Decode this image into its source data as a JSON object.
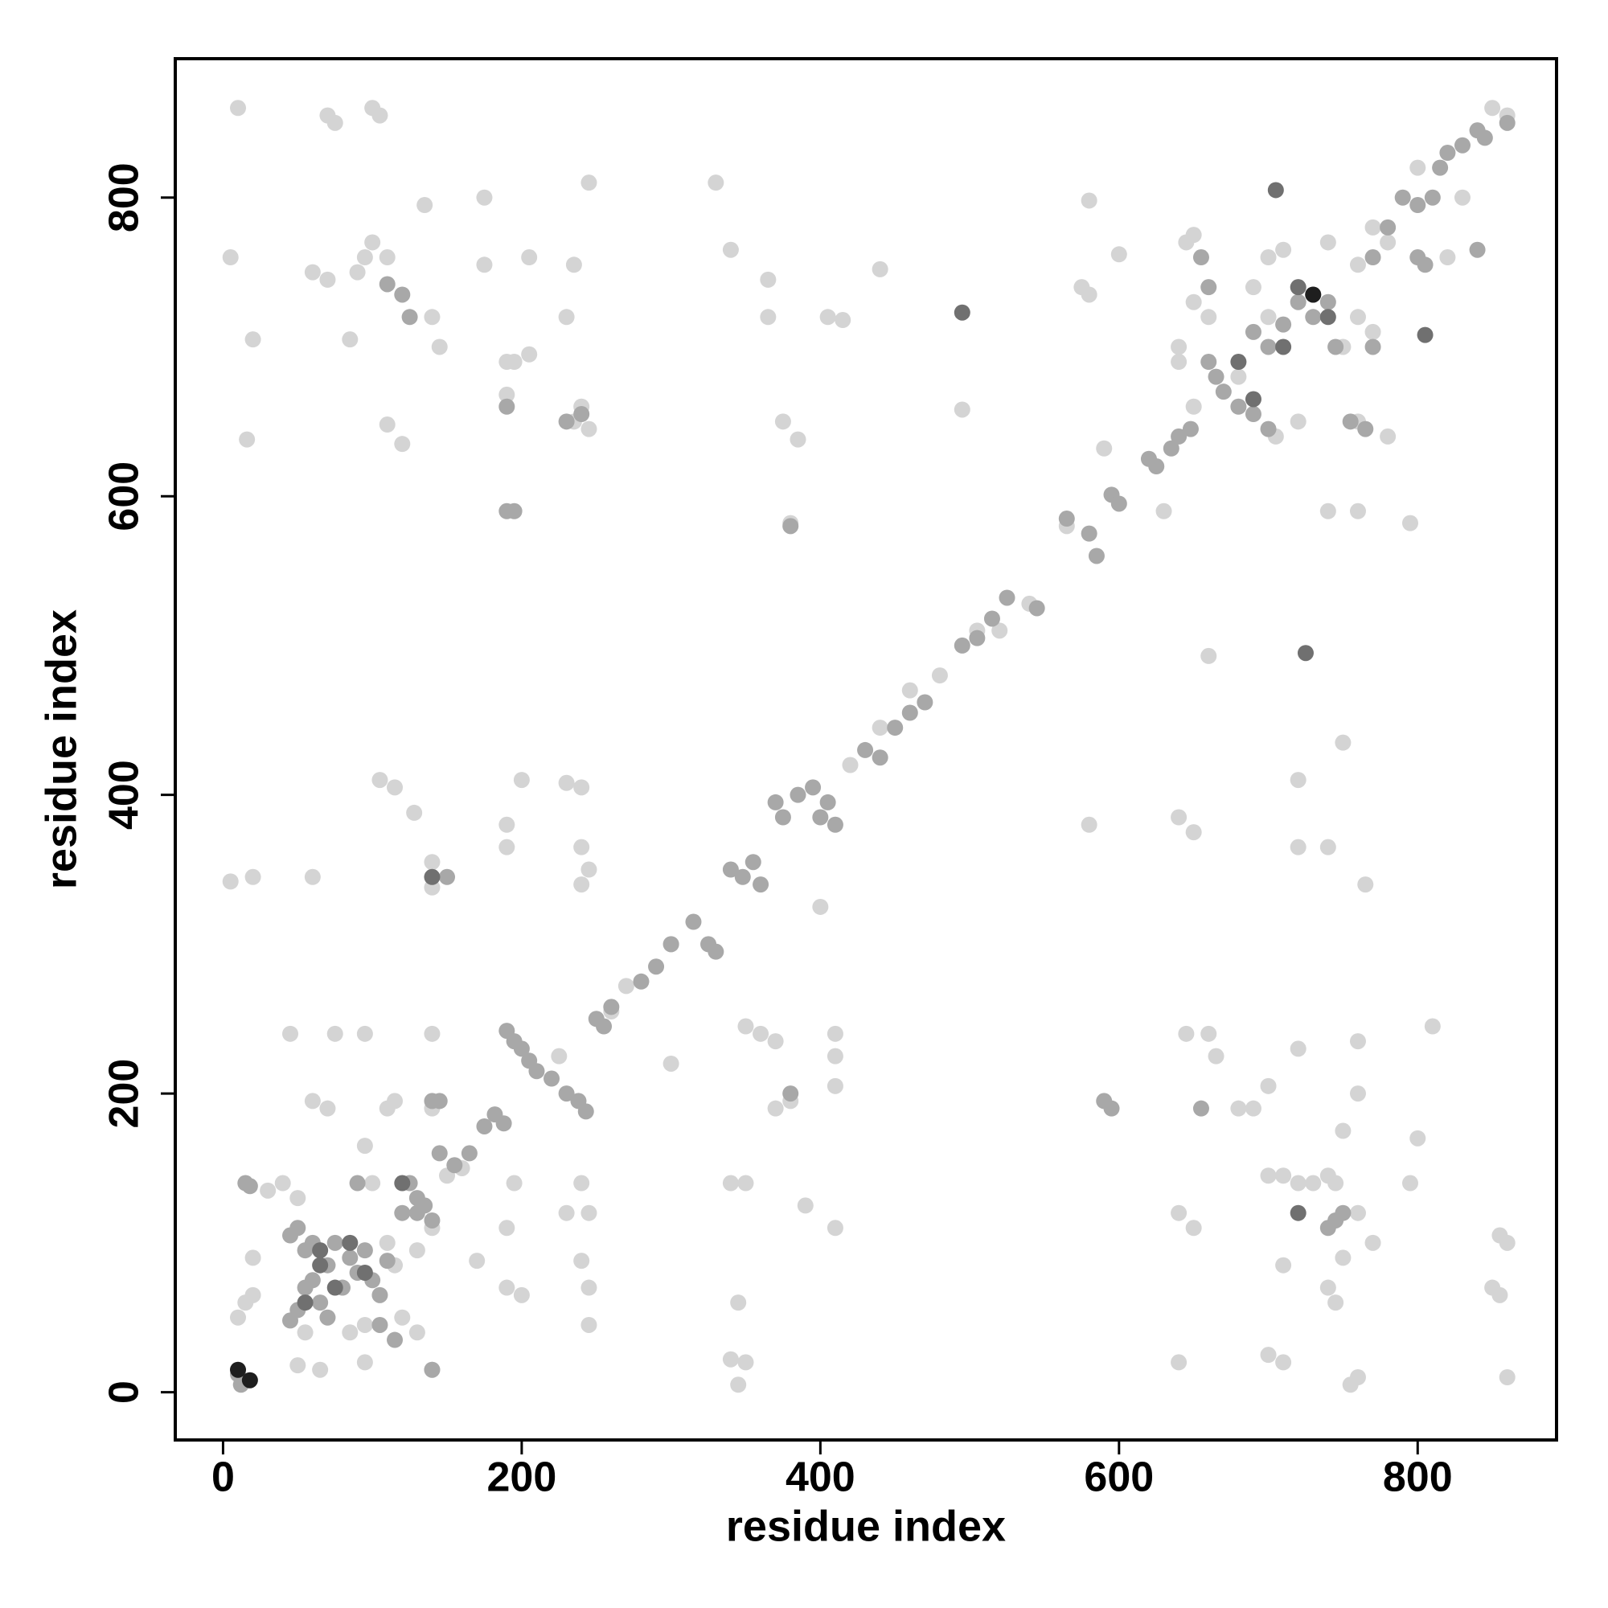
{
  "chart_data": {
    "type": "scatter",
    "xlabel": "residue index",
    "ylabel": "residue index",
    "xlim": [
      -32,
      893
    ],
    "ylim": [
      -32,
      893
    ],
    "xticks": [
      0,
      200,
      400,
      600,
      800
    ],
    "yticks": [
      0,
      200,
      400,
      600,
      800
    ],
    "series": [
      {
        "color": "#d4d4d4",
        "x": [
          5,
          10,
          16,
          20,
          60,
          70,
          70,
          75,
          100,
          105,
          95,
          90,
          100,
          110,
          85,
          110,
          120,
          135,
          140,
          145,
          175,
          175,
          190,
          195,
          190,
          205,
          205,
          230,
          240,
          235,
          245,
          245,
          235,
          330,
          340,
          365,
          365,
          405,
          415,
          440,
          375,
          385,
          380,
          5,
          20,
          60,
          105,
          115,
          128,
          140,
          140,
          190,
          190,
          200,
          230,
          240,
          240,
          245,
          240,
          45,
          75,
          95,
          140,
          60,
          70,
          95,
          110,
          115,
          140,
          240,
          245,
          240,
          245,
          245,
          40,
          50,
          30,
          20,
          15,
          10,
          20,
          50,
          65,
          95,
          55,
          120,
          130,
          140,
          170,
          190,
          195,
          190,
          200,
          225,
          230,
          300,
          340,
          350,
          350,
          360,
          370,
          345,
          340,
          350,
          345,
          370,
          380,
          390,
          410,
          410,
          410,
          400,
          410,
          495,
          580,
          590,
          600,
          575,
          580,
          580,
          640,
          650,
          645,
          660,
          665,
          650,
          640,
          640,
          660,
          680,
          690,
          700,
          700,
          710,
          720,
          730,
          720,
          720,
          720,
          740,
          750,
          760,
          760,
          750,
          765,
          740,
          745,
          760,
          770,
          750,
          740,
          745,
          760,
          755,
          710,
          710,
          700,
          795,
          800,
          795,
          810,
          855,
          860,
          850,
          855,
          860,
          150,
          160,
          140,
          130,
          110,
          115,
          100,
          85,
          95,
          740,
          760,
          760,
          770,
          780,
          800,
          850,
          860,
          820,
          830,
          700,
          710,
          740,
          690,
          700,
          660,
          650,
          640,
          750,
          760,
          770,
          680,
          705,
          720,
          760,
          780,
          640,
          650,
          645,
          650,
          630,
          300,
          260,
          270,
          420,
          440,
          460,
          480,
          505,
          520,
          540,
          565
        ],
        "y": [
          760,
          860,
          638,
          705,
          750,
          745,
          855,
          850,
          860,
          855,
          760,
          750,
          770,
          760,
          705,
          648,
          635,
          795,
          720,
          700,
          800,
          755,
          690,
          690,
          668,
          695,
          760,
          720,
          660,
          650,
          645,
          810,
          755,
          810,
          765,
          745,
          720,
          720,
          718,
          752,
          650,
          638,
          582,
          342,
          345,
          345,
          410,
          405,
          388,
          355,
          338,
          380,
          365,
          410,
          408,
          405,
          365,
          350,
          340,
          240,
          240,
          240,
          240,
          195,
          190,
          165,
          190,
          195,
          190,
          140,
          120,
          88,
          70,
          45,
          140,
          130,
          135,
          90,
          60,
          50,
          65,
          18,
          15,
          20,
          40,
          50,
          40,
          15,
          88,
          110,
          140,
          70,
          65,
          225,
          120,
          220,
          140,
          140,
          245,
          240,
          235,
          60,
          22,
          20,
          5,
          190,
          195,
          125,
          110,
          240,
          225,
          325,
          205,
          658,
          798,
          632,
          762,
          740,
          735,
          380,
          385,
          375,
          240,
          240,
          225,
          110,
          120,
          20,
          493,
          190,
          190,
          205,
          145,
          145,
          140,
          140,
          230,
          410,
          365,
          365,
          435,
          235,
          200,
          175,
          340,
          145,
          140,
          120,
          100,
          90,
          70,
          60,
          10,
          5,
          85,
          20,
          25,
          582,
          170,
          140,
          245,
          105,
          100,
          70,
          65,
          10,
          145,
          150,
          110,
          95,
          100,
          85,
          140,
          40,
          45,
          590,
          590,
          755,
          780,
          770,
          820,
          860,
          855,
          760,
          800,
          760,
          765,
          770,
          740,
          720,
          720,
          730,
          700,
          700,
          720,
          710,
          680,
          640,
          650,
          650,
          640,
          690,
          660,
          770,
          775,
          590,
          300,
          255,
          272,
          420,
          445,
          470,
          480,
          510,
          510,
          528,
          580
        ]
      },
      {
        "color": "#a8a8a8",
        "x": [
          10,
          12,
          15,
          18,
          45,
          50,
          55,
          60,
          65,
          70,
          75,
          80,
          85,
          90,
          95,
          100,
          105,
          110,
          60,
          70,
          50,
          45,
          55,
          120,
          125,
          130,
          135,
          140,
          145,
          155,
          165,
          175,
          182,
          188,
          190,
          195,
          200,
          205,
          210,
          220,
          230,
          238,
          243,
          250,
          255,
          260,
          280,
          290,
          300,
          315,
          325,
          330,
          340,
          348,
          355,
          360,
          370,
          375,
          385,
          395,
          400,
          405,
          410,
          430,
          440,
          450,
          460,
          470,
          495,
          505,
          515,
          525,
          545,
          565,
          580,
          585,
          595,
          600,
          620,
          625,
          635,
          640,
          648,
          660,
          665,
          670,
          680,
          690,
          700,
          710,
          720,
          730,
          740,
          745,
          755,
          765,
          770,
          780,
          790,
          800,
          810,
          815,
          820,
          830,
          840,
          845,
          860,
          655,
          660,
          690,
          700,
          770,
          150,
          140,
          145,
          120,
          110,
          125,
          195,
          190,
          190,
          130,
          380,
          590,
          595,
          380,
          655,
          805,
          800,
          840,
          745,
          740,
          750,
          90,
          105,
          115,
          140,
          230,
          240
        ],
        "y": [
          12,
          5,
          140,
          138,
          105,
          110,
          95,
          75,
          60,
          85,
          100,
          70,
          90,
          80,
          95,
          75,
          65,
          88,
          100,
          50,
          55,
          48,
          70,
          120,
          140,
          130,
          125,
          115,
          160,
          152,
          160,
          178,
          186,
          180,
          242,
          235,
          230,
          222,
          215,
          210,
          200,
          195,
          188,
          250,
          245,
          258,
          275,
          285,
          300,
          315,
          300,
          295,
          350,
          345,
          355,
          340,
          395,
          385,
          400,
          405,
          385,
          395,
          380,
          430,
          425,
          445,
          455,
          462,
          500,
          505,
          518,
          532,
          525,
          585,
          575,
          560,
          601,
          595,
          625,
          620,
          632,
          640,
          645,
          690,
          680,
          670,
          660,
          655,
          645,
          715,
          730,
          720,
          730,
          700,
          650,
          645,
          760,
          780,
          800,
          795,
          800,
          820,
          830,
          835,
          845,
          840,
          850,
          760,
          740,
          710,
          700,
          700,
          345,
          195,
          195,
          735,
          742,
          720,
          590,
          590,
          660,
          120,
          580,
          195,
          190,
          200,
          190,
          755,
          760,
          765,
          115,
          110,
          120,
          140,
          45,
          35,
          15,
          650,
          655
        ]
      },
      {
        "color": "#707070",
        "x": [
          65,
          75,
          85,
          95,
          55,
          65,
          720,
          730,
          740,
          690,
          705,
          805,
          725,
          495,
          720,
          120,
          140,
          680,
          710
        ],
        "y": [
          95,
          70,
          100,
          80,
          60,
          85,
          740,
          735,
          720,
          665,
          805,
          708,
          495,
          723,
          120,
          140,
          345,
          690,
          700
        ]
      },
      {
        "color": "#1e1e1e",
        "x": [
          10,
          18,
          730
        ],
        "y": [
          15,
          8,
          735
        ]
      }
    ]
  }
}
